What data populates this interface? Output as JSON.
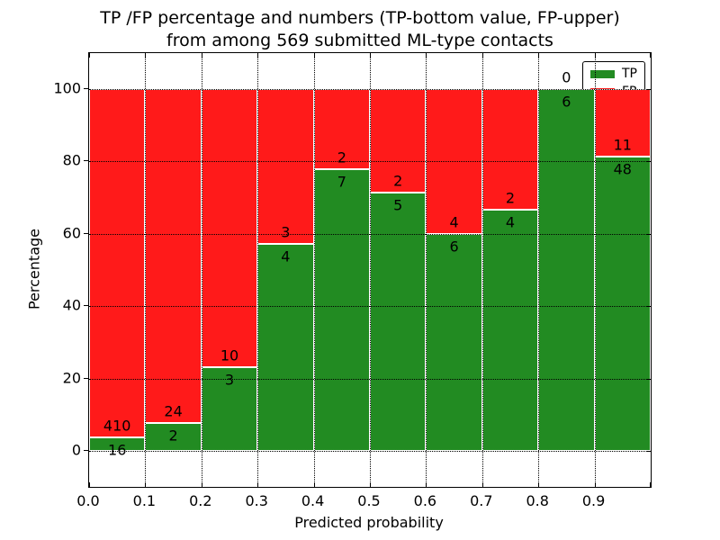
{
  "title": {
    "line1": "TP /FP percentage and numbers (TP-bottom value, FP-upper)",
    "line2": "from among 569 submitted ML-type contacts"
  },
  "chart_data": {
    "type": "bar",
    "stacked": true,
    "title": "TP /FP percentage and numbers (TP-bottom value, FP-upper) from among 569 submitted ML-type contacts",
    "xlabel": "Predicted probability",
    "ylabel": "Percentage",
    "categories": [
      "0.0",
      "0.1",
      "0.2",
      "0.3",
      "0.4",
      "0.5",
      "0.6",
      "0.7",
      "0.8",
      "0.9"
    ],
    "bin_width": 0.1,
    "series": [
      {
        "name": "TP",
        "color": "#228B22",
        "values": [
          16,
          2,
          3,
          4,
          7,
          5,
          6,
          4,
          6,
          48
        ]
      },
      {
        "name": "FP",
        "color": "#ff1a1a",
        "values": [
          410,
          24,
          10,
          3,
          2,
          2,
          4,
          2,
          0,
          11
        ]
      }
    ],
    "values_meaning": "counts per bin; bar segments drawn as percent of bin total (TP bottom, FP top, stacked to 100%)",
    "tp_percent_per_bin": [
      3.76,
      7.69,
      23.08,
      57.14,
      77.78,
      71.43,
      60.0,
      66.67,
      100.0,
      81.36
    ],
    "total_contacts": 569,
    "xticklabels": [
      "0.0",
      "0.1",
      "0.2",
      "0.3",
      "0.4",
      "0.5",
      "0.6",
      "0.7",
      "0.8",
      "0.9"
    ],
    "yticks": [
      0,
      20,
      40,
      60,
      80,
      100
    ],
    "yticklabels": [
      "0",
      "20",
      "40",
      "60",
      "80",
      "100"
    ],
    "xlim": [
      0.0,
      1.0
    ],
    "ylim": [
      -10,
      110
    ],
    "grid": "dotted black, horizontal every 20, vertical every 0.1",
    "legend_position": "upper right"
  }
}
